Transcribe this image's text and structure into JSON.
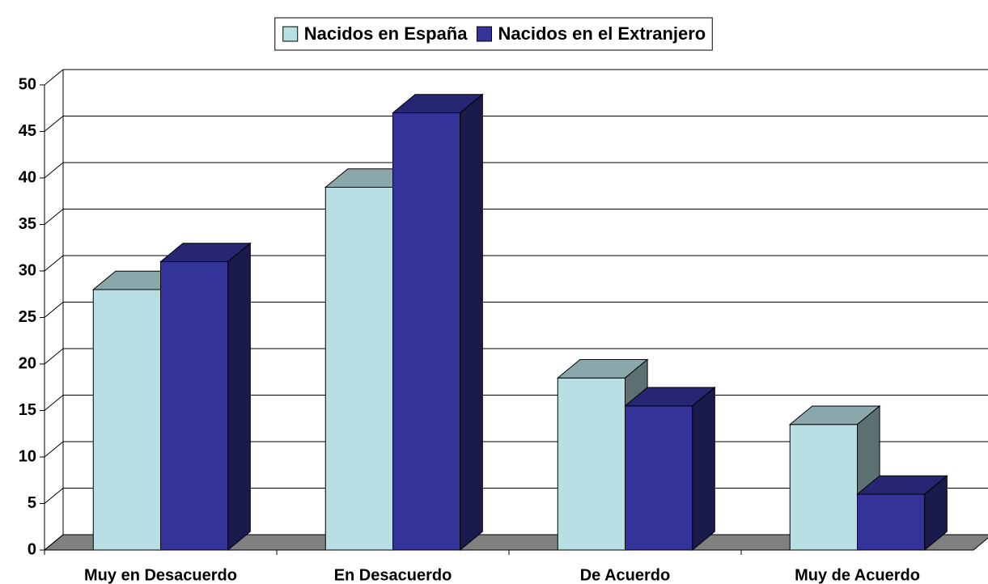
{
  "chart_data": {
    "type": "bar3d",
    "categories": [
      "Muy en Desacuerdo",
      "En Desacuerdo",
      "De Acuerdo",
      "Muy de Acuerdo"
    ],
    "series": [
      {
        "name": "Nacidos en España",
        "color": "#b8e0e4",
        "values": [
          28,
          39,
          18.5,
          13.5
        ]
      },
      {
        "name": "Nacidos en el Extranjero",
        "color": "#333399",
        "values": [
          31,
          47,
          15.5,
          6
        ]
      }
    ],
    "ylim": [
      0,
      50
    ],
    "yticks": [
      0,
      5,
      10,
      15,
      20,
      25,
      30,
      35,
      40,
      45,
      50
    ],
    "grid": true,
    "legend": "top"
  }
}
